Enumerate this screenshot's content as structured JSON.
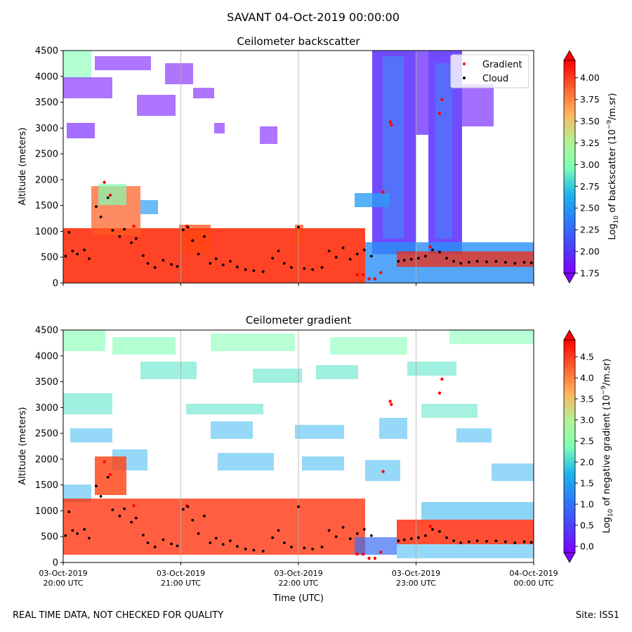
{
  "figure": {
    "suptitle": "SAVANT 04-Oct-2019 00:00:00",
    "footer_left": "REAL TIME DATA, NOT CHECKED FOR QUALITY",
    "footer_right": "Site: ISS1"
  },
  "chart_data": [
    {
      "type": "heatmap",
      "title": "Ceilometer backscatter",
      "xlabel": "",
      "ylabel": "Altitude (meters)",
      "x_ticks": [
        "03-Oct-2019\n20:00 UTC",
        "03-Oct-2019\n21:00 UTC",
        "03-Oct-2019\n22:00 UTC",
        "03-Oct-2019\n23:00 UTC",
        "04-Oct-2019\n00:00 UTC"
      ],
      "x_range_hours": [
        20,
        24
      ],
      "y_ticks": [
        0,
        500,
        1000,
        1500,
        2000,
        2500,
        3000,
        3500,
        4000,
        4500
      ],
      "ylim": [
        0,
        4500
      ],
      "grid": "vertical lines at hourly ticks",
      "legend": {
        "placement": "top-right",
        "entries": [
          {
            "name": "Gradient",
            "color": "#ff0000"
          },
          {
            "name": "Cloud",
            "color": "#000000"
          }
        ]
      },
      "colorbar": {
        "label": "Log10 of backscatter (10^-9/m.sr)",
        "range": [
          1.75,
          4.2
        ],
        "ticks": [
          "1.75",
          "2.00",
          "2.25",
          "2.50",
          "2.75",
          "3.00",
          "3.25",
          "3.50",
          "3.75",
          "4.00"
        ],
        "colormap": "rainbow",
        "extend": "both"
      },
      "cloud_points": [
        {
          "t": 20.02,
          "alt": 520
        },
        {
          "t": 20.05,
          "alt": 980
        },
        {
          "t": 20.08,
          "alt": 620
        },
        {
          "t": 20.12,
          "alt": 560
        },
        {
          "t": 20.18,
          "alt": 640
        },
        {
          "t": 20.22,
          "alt": 470
        },
        {
          "t": 20.28,
          "alt": 1480
        },
        {
          "t": 20.32,
          "alt": 1280
        },
        {
          "t": 20.38,
          "alt": 1650
        },
        {
          "t": 20.42,
          "alt": 1020
        },
        {
          "t": 20.48,
          "alt": 900
        },
        {
          "t": 20.52,
          "alt": 1040
        },
        {
          "t": 20.58,
          "alt": 780
        },
        {
          "t": 20.62,
          "alt": 860
        },
        {
          "t": 20.68,
          "alt": 530
        },
        {
          "t": 20.72,
          "alt": 380
        },
        {
          "t": 20.78,
          "alt": 300
        },
        {
          "t": 20.85,
          "alt": 440
        },
        {
          "t": 20.92,
          "alt": 360
        },
        {
          "t": 20.97,
          "alt": 320
        },
        {
          "t": 21.02,
          "alt": 1030
        },
        {
          "t": 21.06,
          "alt": 1080
        },
        {
          "t": 21.1,
          "alt": 820
        },
        {
          "t": 21.15,
          "alt": 560
        },
        {
          "t": 21.2,
          "alt": 900
        },
        {
          "t": 21.25,
          "alt": 380
        },
        {
          "t": 21.3,
          "alt": 470
        },
        {
          "t": 21.36,
          "alt": 350
        },
        {
          "t": 21.42,
          "alt": 420
        },
        {
          "t": 21.48,
          "alt": 310
        },
        {
          "t": 21.55,
          "alt": 260
        },
        {
          "t": 21.62,
          "alt": 240
        },
        {
          "t": 21.7,
          "alt": 220
        },
        {
          "t": 21.78,
          "alt": 480
        },
        {
          "t": 21.83,
          "alt": 620
        },
        {
          "t": 21.88,
          "alt": 380
        },
        {
          "t": 21.94,
          "alt": 300
        },
        {
          "t": 22.0,
          "alt": 1080
        },
        {
          "t": 22.05,
          "alt": 280
        },
        {
          "t": 22.12,
          "alt": 260
        },
        {
          "t": 22.2,
          "alt": 300
        },
        {
          "t": 22.26,
          "alt": 620
        },
        {
          "t": 22.32,
          "alt": 500
        },
        {
          "t": 22.38,
          "alt": 680
        },
        {
          "t": 22.44,
          "alt": 460
        },
        {
          "t": 22.5,
          "alt": 560
        },
        {
          "t": 22.56,
          "alt": 640
        },
        {
          "t": 22.62,
          "alt": 520
        },
        {
          "t": 22.85,
          "alt": 420
        },
        {
          "t": 22.9,
          "alt": 440
        },
        {
          "t": 22.96,
          "alt": 460
        },
        {
          "t": 23.02,
          "alt": 480
        },
        {
          "t": 23.08,
          "alt": 520
        },
        {
          "t": 23.14,
          "alt": 640
        },
        {
          "t": 23.2,
          "alt": 600
        },
        {
          "t": 23.26,
          "alt": 480
        },
        {
          "t": 23.32,
          "alt": 420
        },
        {
          "t": 23.38,
          "alt": 380
        },
        {
          "t": 23.45,
          "alt": 400
        },
        {
          "t": 23.52,
          "alt": 420
        },
        {
          "t": 23.6,
          "alt": 410
        },
        {
          "t": 23.68,
          "alt": 420
        },
        {
          "t": 23.76,
          "alt": 400
        },
        {
          "t": 23.84,
          "alt": 380
        },
        {
          "t": 23.92,
          "alt": 400
        },
        {
          "t": 23.98,
          "alt": 390
        }
      ],
      "gradient_points": [
        {
          "t": 20.35,
          "alt": 1950
        },
        {
          "t": 20.4,
          "alt": 1700
        },
        {
          "t": 20.6,
          "alt": 1100
        },
        {
          "t": 21.05,
          "alt": 1100
        },
        {
          "t": 22.5,
          "alt": 160
        },
        {
          "t": 22.55,
          "alt": 160
        },
        {
          "t": 22.6,
          "alt": 80
        },
        {
          "t": 22.65,
          "alt": 80
        },
        {
          "t": 22.7,
          "alt": 200
        },
        {
          "t": 22.72,
          "alt": 1760
        },
        {
          "t": 22.78,
          "alt": 3120
        },
        {
          "t": 22.79,
          "alt": 3060
        },
        {
          "t": 23.2,
          "alt": 3280
        },
        {
          "t": 23.22,
          "alt": 3550
        },
        {
          "t": 23.12,
          "alt": 700
        }
      ]
    },
    {
      "type": "heatmap",
      "title": "Ceilometer gradient",
      "xlabel": "Time (UTC)",
      "ylabel": "Altitude (meters)",
      "x_ticks": [
        "03-Oct-2019\n20:00 UTC",
        "03-Oct-2019\n21:00 UTC",
        "03-Oct-2019\n22:00 UTC",
        "03-Oct-2019\n23:00 UTC",
        "04-Oct-2019\n00:00 UTC"
      ],
      "x_range_hours": [
        20,
        24
      ],
      "y_ticks": [
        0,
        500,
        1000,
        1500,
        2000,
        2500,
        3000,
        3500,
        4000,
        4500
      ],
      "ylim": [
        0,
        4500
      ],
      "grid": "vertical lines at hourly ticks",
      "colorbar": {
        "label": "Log10 of negative gradient (10^-9/m.sr)",
        "range": [
          -0.15,
          4.9
        ],
        "ticks": [
          "0.0",
          "0.5",
          "1.0",
          "1.5",
          "2.0",
          "2.5",
          "3.0",
          "3.5",
          "4.0",
          "4.5"
        ],
        "colormap": "rainbow",
        "extend": "both"
      }
    }
  ]
}
